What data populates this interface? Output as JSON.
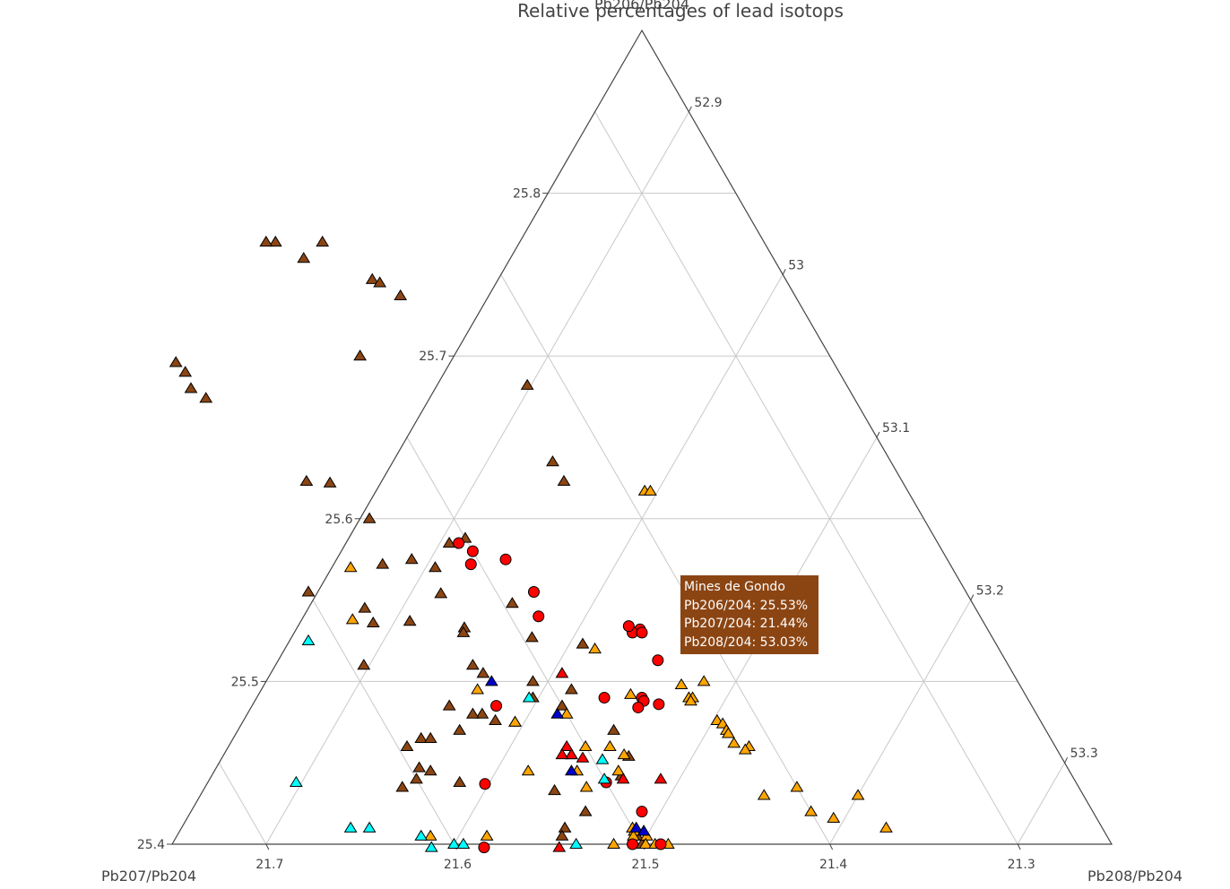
{
  "chart_data": {
    "type": "scatter",
    "subtype": "ternary",
    "title": "Relative percentages of lead isotops",
    "axes": {
      "a": {
        "title": "Pb206/Pb204",
        "min": 25.4,
        "ticks": [
          "25.4",
          "25.5",
          "25.6",
          "25.7",
          "25.8"
        ]
      },
      "b": {
        "title": "Pb207/Pb204",
        "min": 21.25,
        "ticks": [
          "21.3",
          "21.4",
          "21.5",
          "21.6",
          "21.7"
        ]
      },
      "c": {
        "title": "Pb208/Pb204",
        "min": 52.85,
        "ticks": [
          "52.9",
          "53",
          "53.1",
          "53.2",
          "53.3"
        ]
      }
    },
    "grid": true,
    "marker_colors": {
      "brown": "#8b4513",
      "orange": "#ffa500",
      "red": "#ff0000",
      "cyan": "#00ffff",
      "blue": "#0000cc"
    },
    "series": [
      {
        "color": "brown",
        "symbol": "triangle-up",
        "points": [
          [
            25.77,
            21.485
          ],
          [
            25.77,
            21.51
          ],
          [
            25.77,
            21.515
          ],
          [
            25.76,
            21.5
          ],
          [
            25.747,
            21.47
          ],
          [
            25.745,
            21.467
          ],
          [
            25.737,
            21.46
          ],
          [
            25.7,
            21.5
          ],
          [
            25.696,
            21.6
          ],
          [
            25.69,
            21.598
          ],
          [
            25.68,
            21.6
          ],
          [
            25.674,
            21.595
          ],
          [
            25.682,
            21.42
          ],
          [
            25.635,
            21.43
          ],
          [
            25.623,
            21.43
          ],
          [
            25.623,
            21.567
          ],
          [
            25.622,
            21.555
          ],
          [
            25.6,
            21.545
          ],
          [
            25.588,
            21.5
          ],
          [
            25.585,
            21.51
          ],
          [
            25.575,
            21.535
          ],
          [
            25.572,
            21.552
          ],
          [
            25.57,
            21.525
          ],
          [
            25.555,
            21.6
          ],
          [
            25.554,
            21.53
          ],
          [
            25.548,
            21.495
          ],
          [
            25.545,
            21.575
          ],
          [
            25.537,
            21.555
          ],
          [
            25.536,
            21.575
          ],
          [
            25.533,
            21.528
          ],
          [
            25.53,
            21.53
          ],
          [
            25.527,
            21.495
          ],
          [
            25.523,
            21.47
          ],
          [
            25.51,
            21.593
          ],
          [
            25.51,
            21.535
          ],
          [
            25.505,
            21.532
          ],
          [
            25.5,
            21.508
          ],
          [
            25.495,
            21.49
          ],
          [
            25.49,
            21.513
          ],
          [
            25.485,
            21.56
          ],
          [
            25.485,
            21.5
          ],
          [
            25.48,
            21.545
          ],
          [
            25.48,
            21.55
          ],
          [
            25.476,
            21.54
          ],
          [
            25.475,
            21.53
          ],
          [
            25.47,
            21.48
          ],
          [
            25.47,
            21.562
          ],
          [
            25.465,
            21.585
          ],
          [
            25.465,
            21.58
          ],
          [
            25.46,
            21.595
          ],
          [
            25.455,
            21.51
          ],
          [
            25.454,
            21.48
          ],
          [
            25.447,
            21.595
          ],
          [
            25.445,
            21.59
          ],
          [
            25.442,
            21.49
          ],
          [
            25.44,
            21.6
          ],
          [
            25.438,
            21.578
          ],
          [
            25.435,
            21.61
          ],
          [
            25.433,
            21.53
          ],
          [
            25.42,
            21.52
          ],
          [
            25.41,
            21.536
          ],
          [
            25.405,
            21.54
          ],
          [
            25.405,
            21.5
          ],
          [
            25.4,
            21.5
          ]
        ]
      },
      {
        "color": "orange",
        "symbol": "triangle-up",
        "points": [
          [
            25.617,
            21.39
          ],
          [
            25.617,
            21.387
          ],
          [
            25.57,
            21.57
          ],
          [
            25.538,
            21.585
          ],
          [
            25.492,
            21.46
          ],
          [
            25.49,
            21.43
          ],
          [
            25.49,
            21.428
          ],
          [
            25.488,
            21.43
          ],
          [
            25.5,
            21.417
          ],
          [
            25.498,
            21.43
          ],
          [
            25.476,
            21.422
          ],
          [
            25.474,
            21.42
          ],
          [
            25.47,
            21.42
          ],
          [
            25.468,
            21.42
          ],
          [
            25.462,
            21.42
          ],
          [
            25.46,
            21.413
          ],
          [
            25.458,
            21.416
          ],
          [
            25.48,
            21.5
          ],
          [
            25.475,
            21.53
          ],
          [
            25.46,
            21.487
          ],
          [
            25.455,
            21.482
          ],
          [
            25.445,
            21.538
          ],
          [
            25.445,
            21.49
          ],
          [
            25.435,
            21.4
          ],
          [
            25.43,
            21.37
          ],
          [
            25.43,
            21.42
          ],
          [
            25.42,
            21.4
          ],
          [
            25.416,
            21.39
          ],
          [
            25.41,
            21.365
          ],
          [
            25.41,
            21.5
          ],
          [
            25.408,
            21.5
          ],
          [
            25.405,
            21.495
          ],
          [
            25.4,
            21.498
          ],
          [
            25.405,
            21.502
          ],
          [
            25.408,
            21.495
          ],
          [
            25.405,
            21.61
          ],
          [
            25.405,
            21.58
          ],
          [
            25.4,
            21.515
          ],
          [
            25.4,
            21.493
          ],
          [
            25.4,
            21.486
          ],
          [
            25.495,
            21.54
          ],
          [
            25.52,
            21.465
          ],
          [
            25.46,
            21.5
          ],
          [
            25.445,
            21.512
          ],
          [
            25.435,
            21.512
          ]
        ]
      },
      {
        "color": "red",
        "symbol": "circle",
        "points": [
          [
            25.585,
            21.505
          ],
          [
            25.58,
            21.5
          ],
          [
            25.572,
            21.505
          ],
          [
            25.575,
            21.485
          ],
          [
            25.555,
            21.48
          ],
          [
            25.54,
            21.485
          ],
          [
            25.532,
            21.435
          ],
          [
            25.513,
            21.435
          ],
          [
            25.49,
            21.475
          ],
          [
            25.49,
            21.455
          ],
          [
            25.488,
            21.455
          ],
          [
            25.486,
            21.448
          ],
          [
            25.484,
            21.46
          ],
          [
            25.485,
            21.535
          ],
          [
            25.438,
            21.5
          ],
          [
            25.437,
            21.565
          ],
          [
            25.42,
            21.49
          ],
          [
            25.4,
            21.505
          ],
          [
            25.4,
            21.49
          ],
          [
            25.398,
            21.585
          ],
          [
            25.53,
            21.44
          ],
          [
            25.53,
            21.435
          ],
          [
            25.534,
            21.44
          ]
        ]
      },
      {
        "color": "red",
        "symbol": "triangle-up",
        "points": [
          [
            25.505,
            21.49
          ],
          [
            25.46,
            21.51
          ],
          [
            25.455,
            21.51
          ],
          [
            25.453,
            21.505
          ],
          [
            25.44,
            21.49
          ],
          [
            25.44,
            21.47
          ],
          [
            25.398,
            21.545
          ],
          [
            25.455,
            21.515
          ]
        ]
      },
      {
        "color": "cyan",
        "symbol": "triangle-up",
        "points": [
          [
            25.525,
            21.615
          ],
          [
            25.49,
            21.515
          ],
          [
            25.452,
            21.495
          ],
          [
            25.44,
            21.5
          ],
          [
            25.438,
            21.665
          ],
          [
            25.41,
            21.65
          ],
          [
            25.41,
            21.64
          ],
          [
            25.405,
            21.615
          ],
          [
            25.4,
            21.6
          ],
          [
            25.4,
            21.595
          ],
          [
            25.4,
            21.535
          ],
          [
            25.398,
            21.613
          ]
        ]
      },
      {
        "color": "blue",
        "symbol": "triangle-up",
        "points": [
          [
            25.5,
            21.53
          ],
          [
            25.48,
            21.505
          ],
          [
            25.445,
            21.515
          ],
          [
            25.41,
            21.498
          ],
          [
            25.408,
            21.495
          ]
        ]
      }
    ]
  },
  "tooltip": {
    "title": "Mines de Gondo",
    "lines": [
      "Pb206/204: 25.53%",
      "Pb207/204: 21.44%",
      "Pb208/204: 53.03%"
    ],
    "background": "#8b4513"
  }
}
